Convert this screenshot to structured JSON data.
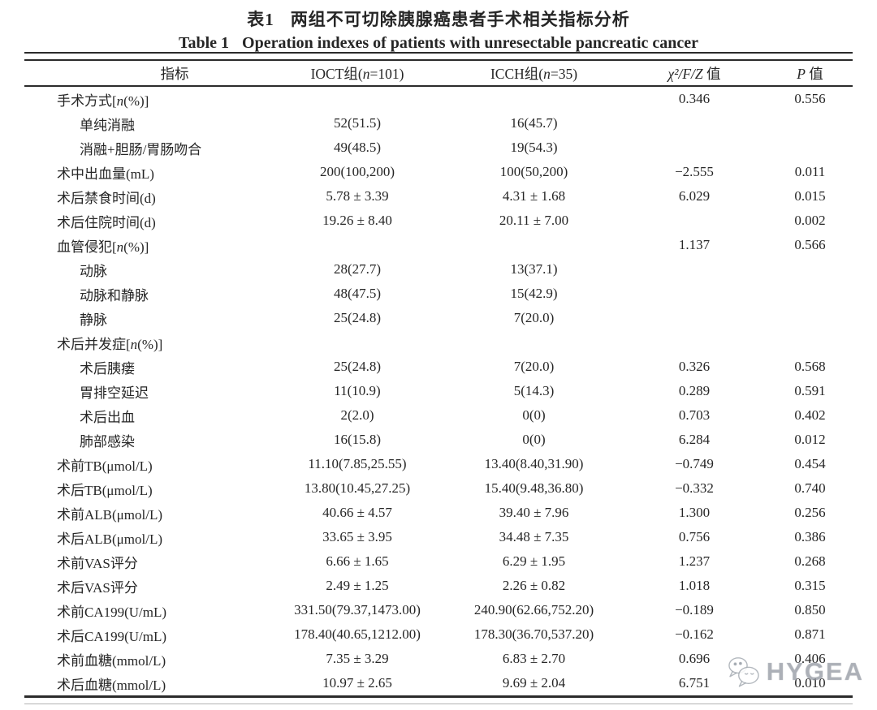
{
  "titles": {
    "zh_label": "表1",
    "zh_title": "两组不可切除胰腺癌患者手术相关指标分析",
    "en_label": "Table 1",
    "en_title": "Operation indexes of patients with unresectable pancreatic cancer"
  },
  "table": {
    "header": {
      "indicator": "指标",
      "ioct": [
        {
          "t": "IOCT组("
        },
        {
          "t": "n",
          "i": true
        },
        {
          "t": "=101)"
        }
      ],
      "icch": [
        {
          "t": "ICCH组("
        },
        {
          "t": "n",
          "i": true
        },
        {
          "t": "=35)"
        }
      ],
      "stat": [
        {
          "t": "χ²/F/Z",
          "i": true
        },
        {
          "t": " 值"
        }
      ],
      "p": [
        {
          "t": "P",
          "i": true
        },
        {
          "t": " 值"
        }
      ]
    },
    "rows": [
      {
        "label": "手术方式[n(%)]",
        "indent": false,
        "ioct": "",
        "icch": "",
        "stat": "0.346",
        "p": "0.556"
      },
      {
        "label": "单纯消融",
        "indent": true,
        "ioct": "52(51.5)",
        "icch": "16(45.7)",
        "stat": "",
        "p": ""
      },
      {
        "label": "消融+胆肠/胃肠吻合",
        "indent": true,
        "ioct": "49(48.5)",
        "icch": "19(54.3)",
        "stat": "",
        "p": ""
      },
      {
        "label": "术中出血量(mL)",
        "indent": false,
        "ioct": "200(100,200)",
        "icch": "100(50,200)",
        "stat": "−2.555",
        "p": "0.011"
      },
      {
        "label": "术后禁食时间(d)",
        "indent": false,
        "ioct": "5.78 ± 3.39",
        "icch": "4.31 ± 1.68",
        "stat": "6.029",
        "p": "0.015"
      },
      {
        "label": "术后住院时间(d)",
        "indent": false,
        "ioct": "19.26 ± 8.40",
        "icch": "20.11 ± 7.00",
        "stat": "",
        "p": "0.002"
      },
      {
        "label": "血管侵犯[n(%)]",
        "indent": false,
        "ioct": "",
        "icch": "",
        "stat": "1.137",
        "p": "0.566"
      },
      {
        "label": "动脉",
        "indent": true,
        "ioct": "28(27.7)",
        "icch": "13(37.1)",
        "stat": "",
        "p": ""
      },
      {
        "label": "动脉和静脉",
        "indent": true,
        "ioct": "48(47.5)",
        "icch": "15(42.9)",
        "stat": "",
        "p": ""
      },
      {
        "label": "静脉",
        "indent": true,
        "ioct": "25(24.8)",
        "icch": "7(20.0)",
        "stat": "",
        "p": ""
      },
      {
        "label": "术后并发症[n(%)]",
        "indent": false,
        "ioct": "",
        "icch": "",
        "stat": "",
        "p": ""
      },
      {
        "label": "术后胰瘘",
        "indent": true,
        "ioct": "25(24.8)",
        "icch": "7(20.0)",
        "stat": "0.326",
        "p": "0.568"
      },
      {
        "label": "胃排空延迟",
        "indent": true,
        "ioct": "11(10.9)",
        "icch": "5(14.3)",
        "stat": "0.289",
        "p": "0.591"
      },
      {
        "label": "术后出血",
        "indent": true,
        "ioct": "2(2.0)",
        "icch": "0(0)",
        "stat": "0.703",
        "p": "0.402"
      },
      {
        "label": "肺部感染",
        "indent": true,
        "ioct": "16(15.8)",
        "icch": "0(0)",
        "stat": "6.284",
        "p": "0.012"
      },
      {
        "label": "术前TB(μmol/L)",
        "indent": false,
        "ioct": "11.10(7.85,25.55)",
        "icch": "13.40(8.40,31.90)",
        "stat": "−0.749",
        "p": "0.454"
      },
      {
        "label": "术后TB(μmol/L)",
        "indent": false,
        "ioct": "13.80(10.45,27.25)",
        "icch": "15.40(9.48,36.80)",
        "stat": "−0.332",
        "p": "0.740"
      },
      {
        "label": "术前ALB(μmol/L)",
        "indent": false,
        "ioct": "40.66 ± 4.57",
        "icch": "39.40 ± 7.96",
        "stat": "1.300",
        "p": "0.256"
      },
      {
        "label": "术后ALB(μmol/L)",
        "indent": false,
        "ioct": "33.65 ± 3.95",
        "icch": "34.48 ± 7.35",
        "stat": "0.756",
        "p": "0.386"
      },
      {
        "label": "术前VAS评分",
        "indent": false,
        "ioct": "6.66 ± 1.65",
        "icch": "6.29 ± 1.95",
        "stat": "1.237",
        "p": "0.268"
      },
      {
        "label": "术后VAS评分",
        "indent": false,
        "ioct": "2.49 ± 1.25",
        "icch": "2.26 ± 0.82",
        "stat": "1.018",
        "p": "0.315"
      },
      {
        "label": "术前CA199(U/mL)",
        "indent": false,
        "ioct": "331.50(79.37,1473.00)",
        "icch": "240.90(62.66,752.20)",
        "stat": "−0.189",
        "p": "0.850"
      },
      {
        "label": "术后CA199(U/mL)",
        "indent": false,
        "ioct": "178.40(40.65,1212.00)",
        "icch": "178.30(36.70,537.20)",
        "stat": "−0.162",
        "p": "0.871"
      },
      {
        "label": "术前血糖(mmol/L)",
        "indent": false,
        "ioct": "7.35 ± 3.29",
        "icch": "6.83 ± 2.70",
        "stat": "0.696",
        "p": "0.406"
      },
      {
        "label": "术后血糖(mmol/L)",
        "indent": false,
        "ioct": "10.97 ± 2.65",
        "icch": "9.69 ± 2.04",
        "stat": "6.751",
        "p": "0.010"
      }
    ]
  },
  "watermark": {
    "text": "HYGEA",
    "icon": "wechat-chat-bubbles-icon"
  },
  "colors": {
    "text": "#262626",
    "rule": "#2b2b2b",
    "watermark": "#9da2aa",
    "background": "#ffffff"
  }
}
